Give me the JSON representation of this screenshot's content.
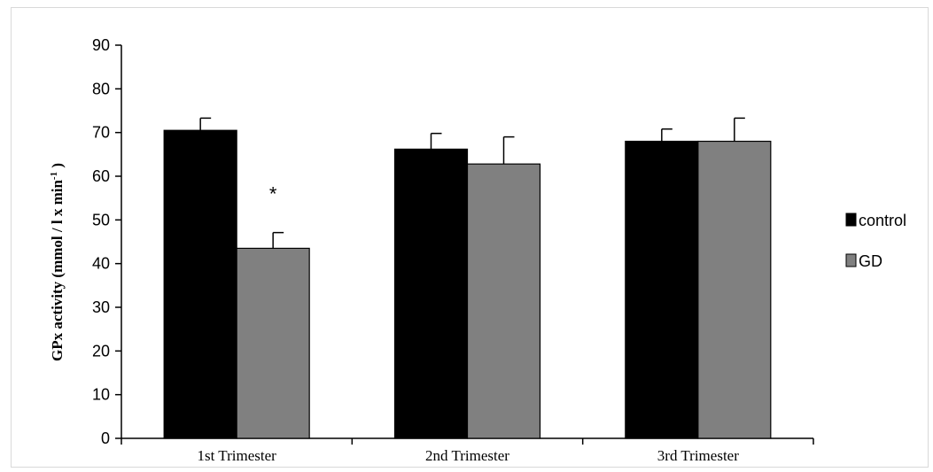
{
  "chart_data": {
    "type": "bar",
    "categories": [
      "1st Trimester",
      "2nd Trimester",
      "3rd Trimester"
    ],
    "series": [
      {
        "name": "control",
        "values": [
          70.5,
          66.2,
          68.0
        ],
        "errors": [
          2.8,
          3.6,
          2.8
        ],
        "color": "#000000"
      },
      {
        "name": "GD",
        "values": [
          43.5,
          62.8,
          68.0
        ],
        "errors": [
          3.6,
          6.2,
          5.3
        ],
        "color": "#808080"
      }
    ],
    "ylabel": "GPx activity (mmol / l x min",
    "ylabel_sup": "-1",
    "ylabel_end": " )",
    "ylim": [
      0,
      90
    ],
    "yticks": [
      0,
      10,
      20,
      30,
      40,
      50,
      60,
      70,
      80,
      90
    ],
    "grid": false,
    "legend_position": "right",
    "annotations": [
      {
        "text": "*",
        "category": "1st Trimester",
        "series": "GD"
      }
    ]
  }
}
